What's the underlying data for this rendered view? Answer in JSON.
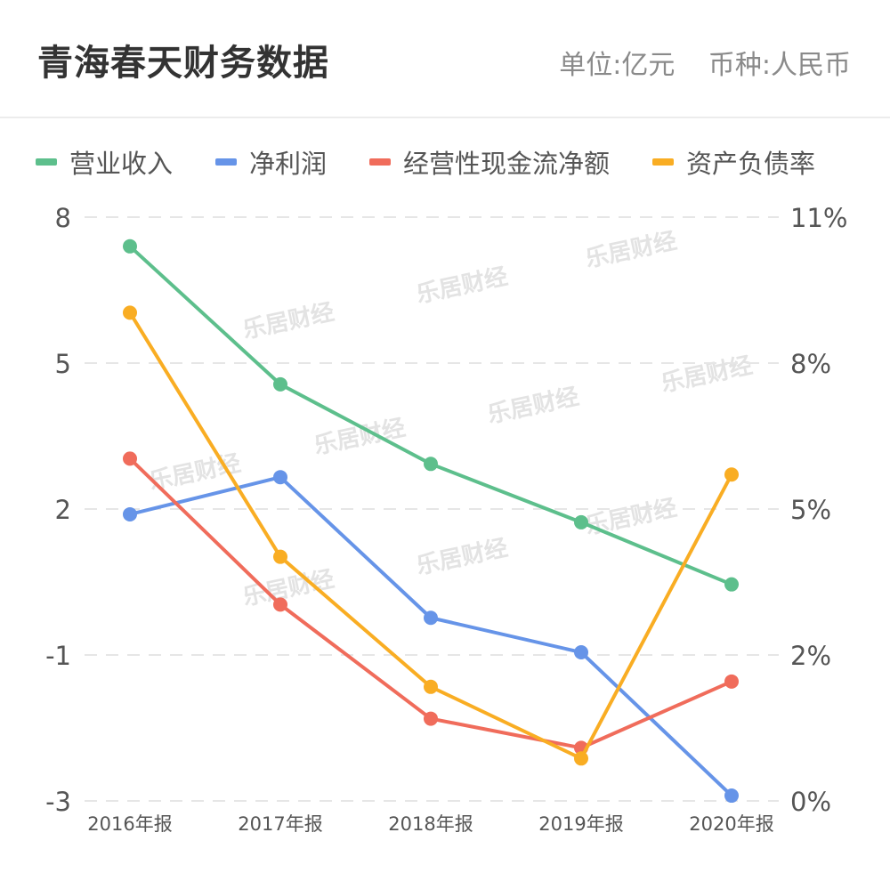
{
  "header": {
    "title": "青海春天财务数据",
    "unit": "单位:亿元",
    "currency": "币种:人民币"
  },
  "watermark": "乐居财经",
  "chart_data": {
    "type": "line",
    "categories": [
      "2016年报",
      "2017年报",
      "2018年报",
      "2019年报",
      "2020年报"
    ],
    "y_left": {
      "ticks": [
        "8",
        "5",
        "2",
        "-1",
        "-3"
      ],
      "range": [
        -3,
        8
      ]
    },
    "y_right": {
      "ticks": [
        "11%",
        "8%",
        "5%",
        "2%",
        "0%"
      ],
      "range": [
        0,
        11
      ]
    },
    "grid": true,
    "legend_position": "top-left",
    "series": [
      {
        "name": "营业收入",
        "axis": "left",
        "color": "#5dbf8c",
        "values": [
          7.45,
          4.85,
          3.35,
          2.25,
          1.08
        ]
      },
      {
        "name": "净利润",
        "axis": "left",
        "color": "#6694e8",
        "values": [
          2.4,
          3.1,
          0.45,
          -0.2,
          -2.9
        ]
      },
      {
        "name": "经营性现金流净额",
        "axis": "left",
        "color": "#f06c5b",
        "values": [
          3.45,
          0.7,
          -1.45,
          -2.0,
          -0.75
        ]
      },
      {
        "name": "资产负债率",
        "axis": "right",
        "color": "#f9ad23",
        "values": [
          9.2,
          4.6,
          2.15,
          0.8,
          6.15
        ]
      }
    ]
  }
}
